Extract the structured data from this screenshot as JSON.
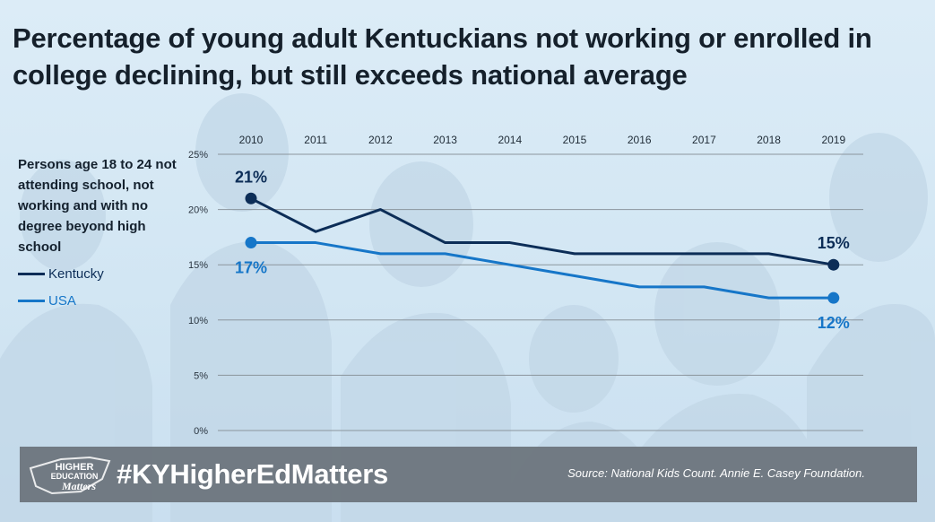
{
  "title": "Percentage of young adult Kentuckians not working or enrolled in college declining, but still exceeds national average",
  "chart_data": {
    "type": "line",
    "title": "Percentage of young adult Kentuckians not working or enrolled in college declining, but still exceeds national average",
    "description_label": "Persons age 18 to 24 not attending school, not working and with no degree beyond high school",
    "x": [
      "2010",
      "2011",
      "2012",
      "2013",
      "2014",
      "2015",
      "2016",
      "2017",
      "2018",
      "2019"
    ],
    "yticks": [
      "25%",
      "20%",
      "15%",
      "10%",
      "5%",
      "0%"
    ],
    "ylim": [
      0,
      25
    ],
    "grid": true,
    "legend_position": "left",
    "series": [
      {
        "name": "Kentucky",
        "color": "#0c2d57",
        "values": [
          21,
          18,
          20,
          17,
          17,
          16,
          16,
          16,
          16,
          15
        ],
        "start_label": "21%",
        "end_label": "15%"
      },
      {
        "name": "USA",
        "color": "#1676c8",
        "values": [
          17,
          17,
          16,
          16,
          15,
          14,
          13,
          13,
          12,
          12
        ],
        "start_label": "17%",
        "end_label": "12%"
      }
    ]
  },
  "footer": {
    "logo_line1": "HIGHER",
    "logo_line2": "EDUCATION",
    "logo_line3": "Matters",
    "hashtag": "#KYHigherEdMatters",
    "source": "Source: National Kids Count. Annie E. Casey Foundation."
  }
}
